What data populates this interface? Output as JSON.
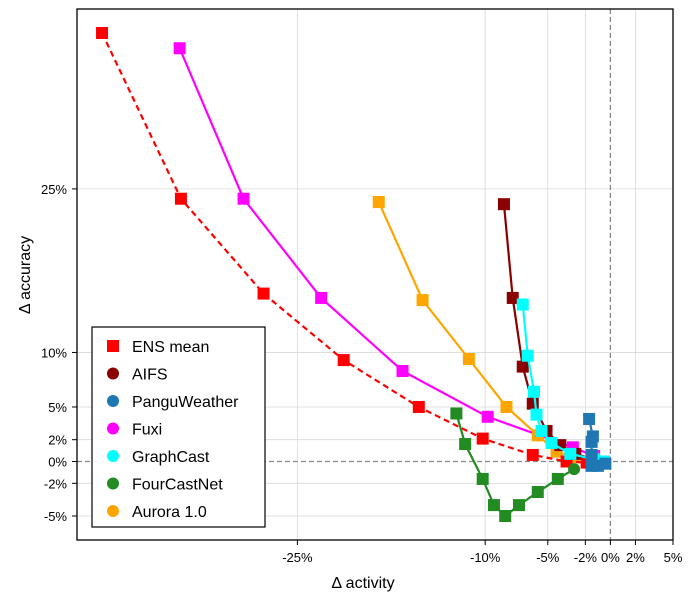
{
  "chart_data": {
    "type": "line",
    "title": "",
    "xlabel": "Δ activity",
    "ylabel": "Δ accuracy",
    "xlim": [
      -42.6,
      5.0
    ],
    "ylim": [
      -7.2,
      41.5
    ],
    "x_unit": "%",
    "y_unit": "%",
    "grid": true,
    "x_ticks": [
      {
        "value": -25,
        "label": "-25%"
      },
      {
        "value": -10,
        "label": "-10%"
      },
      {
        "value": -5,
        "label": "-5%"
      },
      {
        "value": -2,
        "label": "-2%"
      },
      {
        "value": 0,
        "label": "0%"
      },
      {
        "value": 2,
        "label": "2%"
      },
      {
        "value": 5,
        "label": "5%"
      }
    ],
    "y_ticks": [
      {
        "value": 25,
        "label": "25%"
      },
      {
        "value": 10,
        "label": "10%"
      },
      {
        "value": 5,
        "label": "5%"
      },
      {
        "value": 2,
        "label": "2%"
      },
      {
        "value": 0,
        "label": "0%"
      },
      {
        "value": -2,
        "label": "-2%"
      },
      {
        "value": -5,
        "label": "-5%"
      }
    ],
    "reference_lines": {
      "x": 0,
      "y": 0,
      "style": "dashed"
    },
    "legend": {
      "placement": "bottom-left"
    },
    "series": [
      {
        "name": "ENS mean",
        "color": "#ff0000",
        "line": "dashed",
        "legend_marker": "square",
        "end_marker": "circle",
        "points": [
          [
            -40.6,
            39.3
          ],
          [
            -34.3,
            24.1
          ],
          [
            -27.7,
            15.4
          ],
          [
            -21.3,
            9.3
          ],
          [
            -15.3,
            5.0
          ],
          [
            -10.2,
            2.1
          ],
          [
            -6.2,
            0.6
          ],
          [
            -3.5,
            0.0
          ],
          [
            -1.9,
            -0.1
          ],
          [
            -1.0,
            -0.1
          ]
        ]
      },
      {
        "name": "AIFS",
        "color": "#8b0000",
        "line": "solid",
        "legend_marker": "circle",
        "points": [
          [
            -8.5,
            23.6
          ],
          [
            -7.8,
            15.0
          ],
          [
            -7.0,
            8.7
          ],
          [
            -6.2,
            5.3
          ],
          [
            -5.1,
            2.8
          ],
          [
            -4.0,
            1.5
          ],
          [
            -2.8,
            0.7
          ],
          [
            -1.4,
            0.2
          ],
          [
            -0.5,
            0.0
          ]
        ]
      },
      {
        "name": "PanguWeather",
        "color": "#1f77b4",
        "line": "solid",
        "legend_marker": "circle",
        "points": [
          [
            -1.7,
            3.9
          ],
          [
            -1.4,
            2.3
          ],
          [
            -1.5,
            1.8
          ],
          [
            -1.5,
            0.6
          ],
          [
            -1.5,
            -0.4
          ],
          [
            -1.0,
            -0.4
          ],
          [
            -0.4,
            -0.2
          ]
        ]
      },
      {
        "name": "Fuxi",
        "color": "#ff00ff",
        "line": "solid",
        "legend_marker": "circle",
        "points": [
          [
            -34.4,
            37.9
          ],
          [
            -29.3,
            24.1
          ],
          [
            -23.1,
            15.0
          ],
          [
            -16.6,
            8.3
          ],
          [
            -9.8,
            4.1
          ],
          [
            -3.0,
            1.3
          ],
          [
            -1.3,
            0.5
          ],
          [
            -0.5,
            0.0
          ]
        ]
      },
      {
        "name": "GraphCast",
        "color": "#00ffff",
        "line": "solid",
        "legend_marker": "circle",
        "points": [
          [
            -7.0,
            14.4
          ],
          [
            -6.6,
            9.7
          ],
          [
            -6.1,
            6.4
          ],
          [
            -5.9,
            4.3
          ],
          [
            -5.5,
            2.8
          ],
          [
            -4.7,
            1.7
          ],
          [
            -3.2,
            0.7
          ],
          [
            -1.3,
            0.2
          ],
          [
            -0.5,
            0.0
          ]
        ]
      },
      {
        "name": "FourCastNet",
        "color": "#228b22",
        "line": "solid",
        "legend_marker": "circle",
        "end_marker": "circle",
        "points": [
          [
            -12.3,
            4.4
          ],
          [
            -11.6,
            1.6
          ],
          [
            -10.2,
            -1.6
          ],
          [
            -9.3,
            -4.0
          ],
          [
            -8.4,
            -5.0
          ],
          [
            -7.3,
            -4.0
          ],
          [
            -5.8,
            -2.8
          ],
          [
            -4.2,
            -1.6
          ],
          [
            -2.9,
            -0.7
          ]
        ]
      },
      {
        "name": "Aurora 1.0",
        "color": "#ffa500",
        "line": "solid",
        "legend_marker": "circle",
        "points": [
          [
            -18.5,
            23.8
          ],
          [
            -15.0,
            14.8
          ],
          [
            -11.3,
            9.4
          ],
          [
            -8.3,
            5.0
          ],
          [
            -5.8,
            2.4
          ],
          [
            -4.3,
            0.9
          ],
          [
            -2.9,
            0.4
          ],
          [
            -1.4,
            0.0
          ]
        ]
      }
    ]
  }
}
